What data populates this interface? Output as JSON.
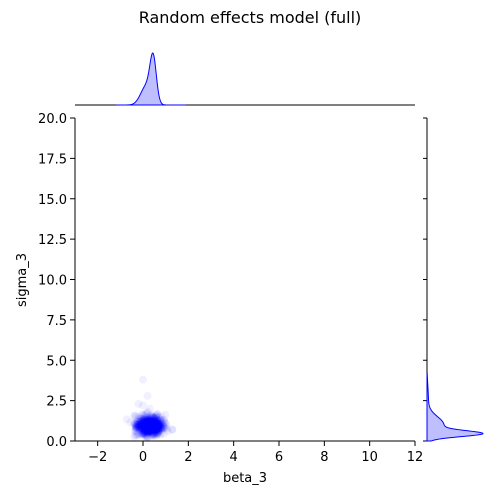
{
  "chart_data": {
    "type": "scatter",
    "title": "Random effects model (full)",
    "xlabel": "beta_3",
    "ylabel": "sigma_3",
    "xlim": [
      -3,
      12
    ],
    "ylim": [
      0,
      20
    ],
    "xticks": [
      "−2",
      "0",
      "2",
      "4",
      "6",
      "8",
      "10",
      "12"
    ],
    "xtick_values": [
      -2,
      0,
      2,
      4,
      6,
      8,
      10,
      12
    ],
    "yticks": [
      "0.0",
      "2.5",
      "5.0",
      "7.5",
      "10.0",
      "12.5",
      "15.0",
      "17.5",
      "20.0"
    ],
    "ytick_values": [
      0,
      2.5,
      5,
      7.5,
      10,
      12.5,
      15,
      17.5,
      20
    ],
    "grid": false,
    "color": "#0000ff",
    "marginals": "kde",
    "x_center": 0.3,
    "x_spread": 0.3,
    "y_center": 0.8,
    "y_spread": 0.35,
    "points": [
      [
        0.3,
        0.8
      ],
      [
        0.1,
        1.2
      ],
      [
        -0.2,
        1.5
      ],
      [
        0.5,
        0.6
      ],
      [
        0.8,
        0.5
      ],
      [
        0.0,
        2.2
      ],
      [
        0.2,
        2.8
      ],
      [
        -0.3,
        0.9
      ],
      [
        0.6,
        1.1
      ],
      [
        0.4,
        0.3
      ],
      [
        -0.1,
        0.4
      ],
      [
        0.9,
        0.9
      ],
      [
        1.1,
        0.6
      ],
      [
        0.2,
        1.8
      ],
      [
        -0.2,
        2.3
      ],
      [
        0.0,
        3.8
      ],
      [
        0.7,
        1.5
      ],
      [
        1.3,
        0.7
      ],
      [
        -0.4,
        1.1
      ],
      [
        0.3,
        2.0
      ]
    ]
  }
}
